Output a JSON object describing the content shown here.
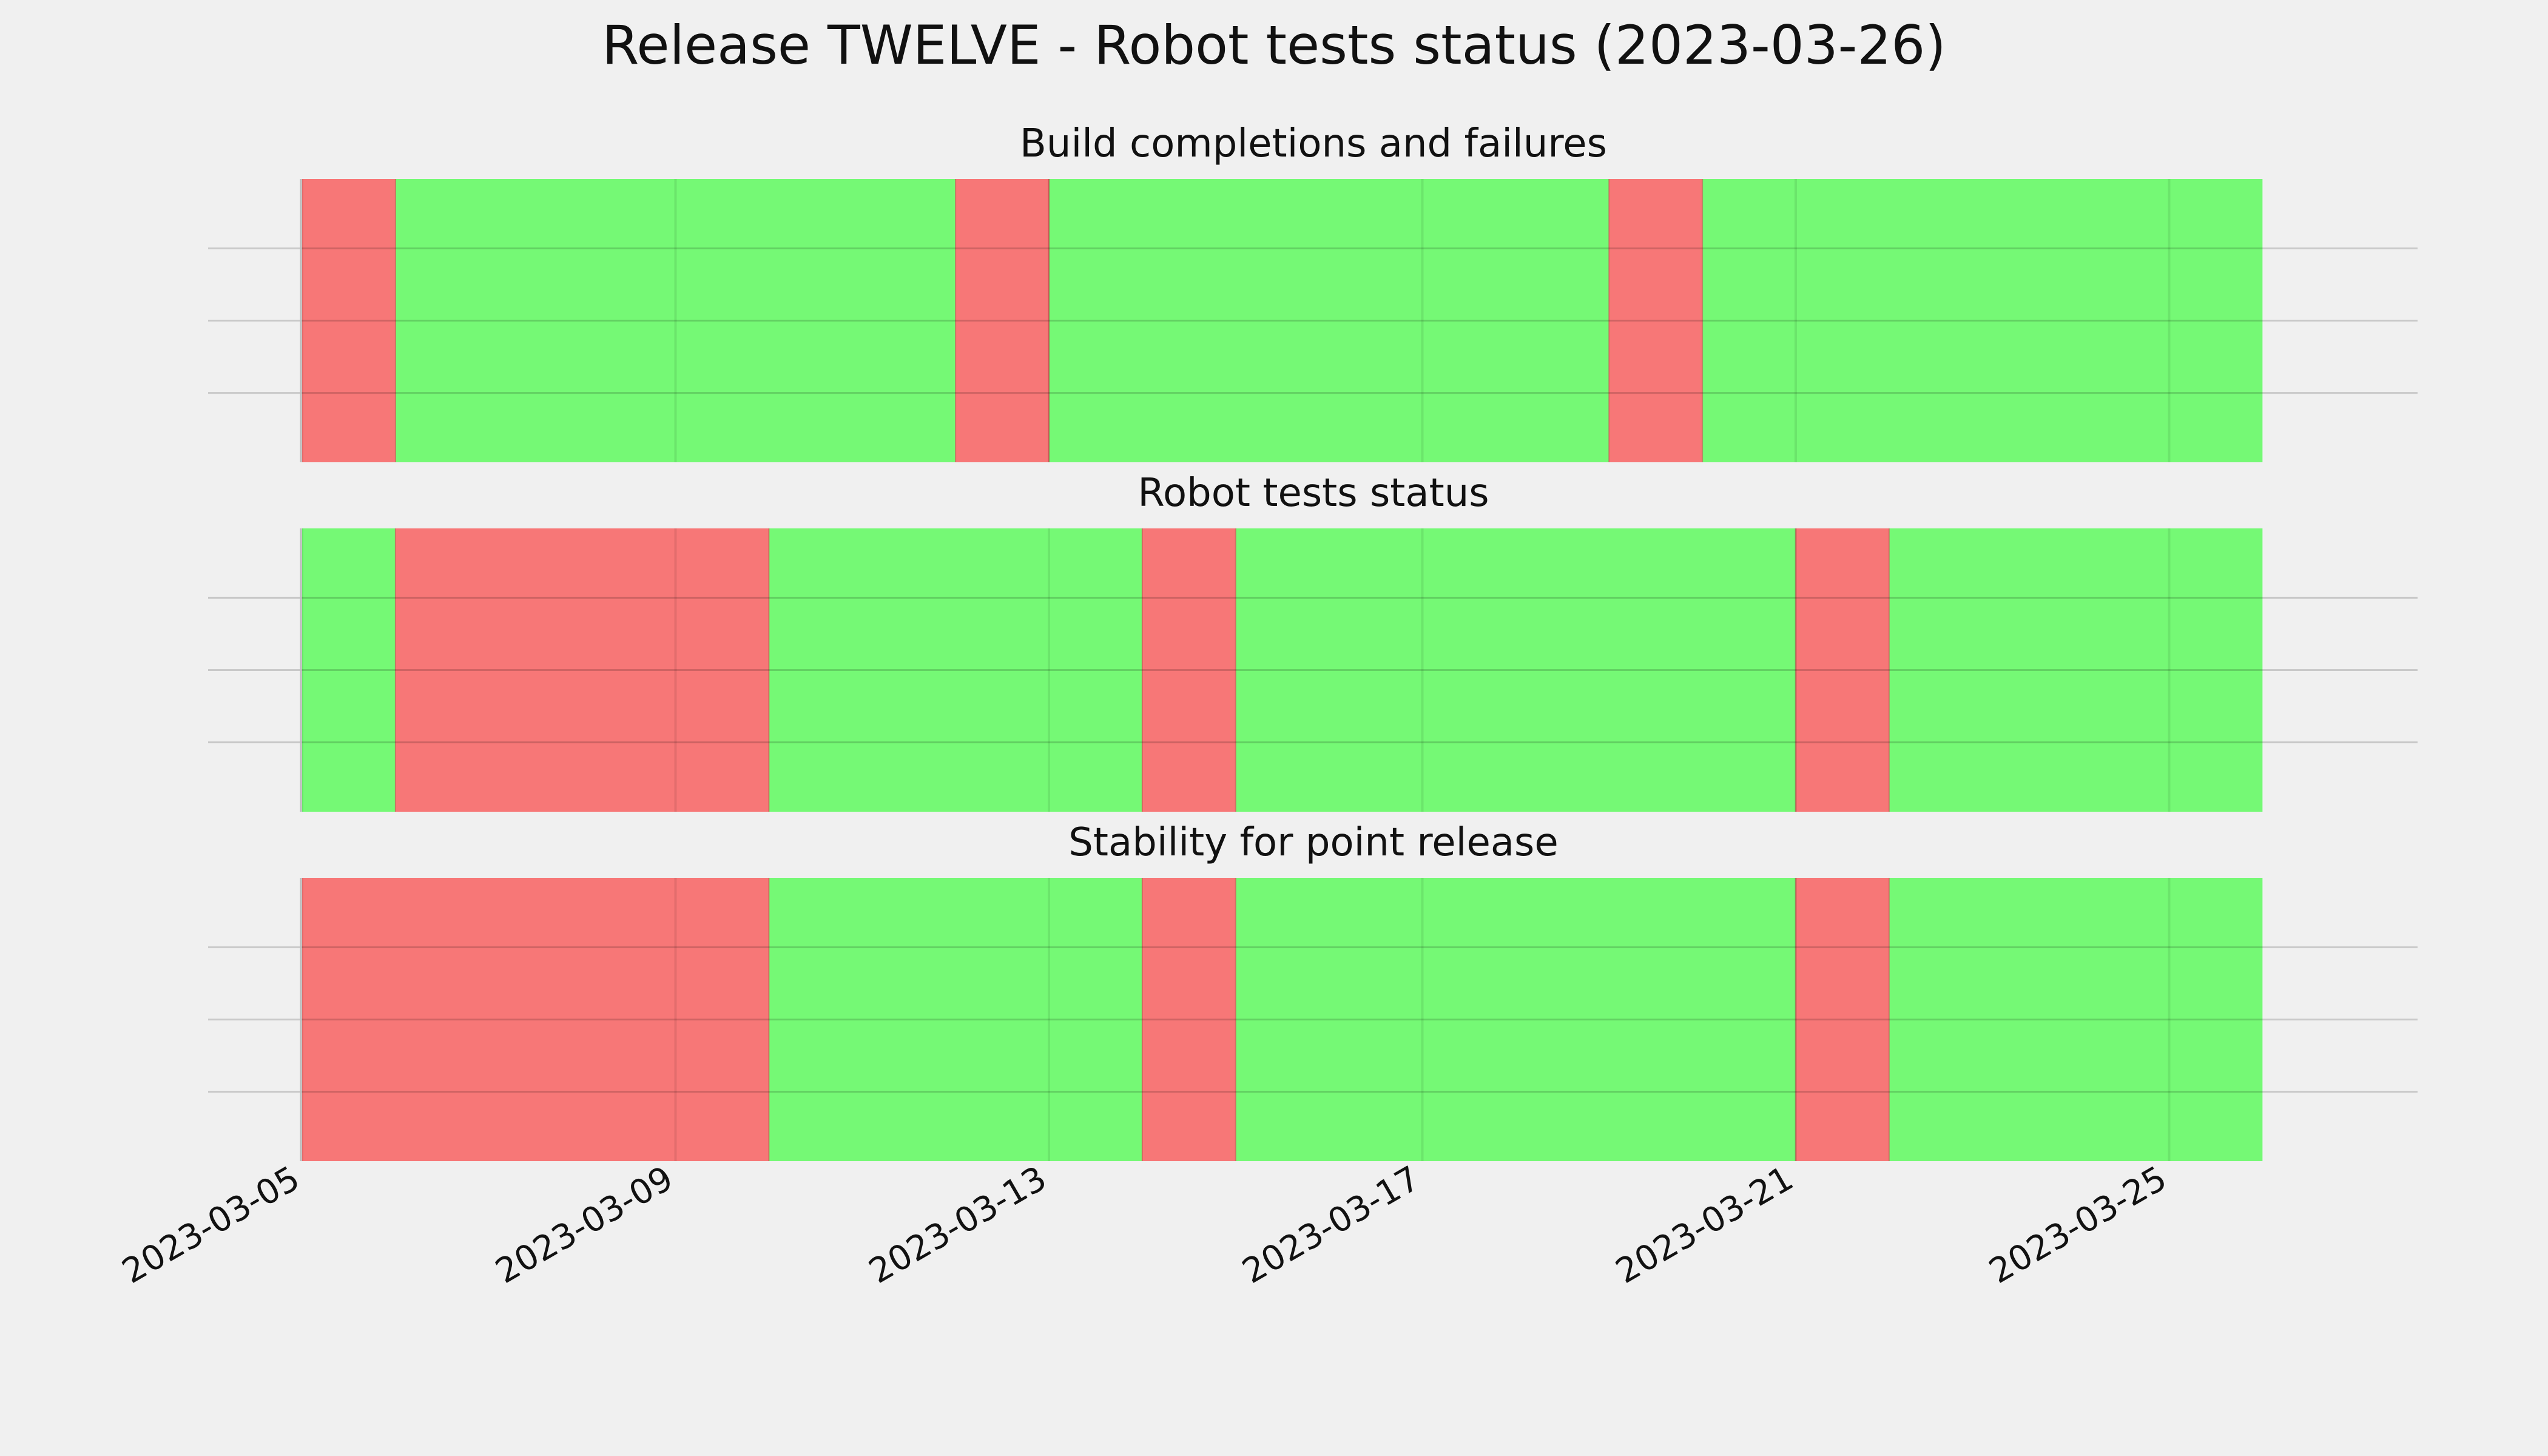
{
  "title": "Release TWELVE - Robot tests status (2023-03-26)",
  "colors": {
    "background": "#f0f0f0",
    "pass": "#75f975",
    "fail": "#f77777",
    "gridline": "#cbcbcb",
    "vgrid": "#6bdc6b"
  },
  "chart_data": {
    "type": "area",
    "xlim": [
      "2023-03-05",
      "2023-03-26"
    ],
    "xticks": [
      "2023-03-05",
      "2023-03-09",
      "2023-03-13",
      "2023-03-17",
      "2023-03-21",
      "2023-03-25"
    ],
    "grid": true,
    "panels": [
      {
        "title": "Build completions and failures",
        "segments": [
          {
            "start": "2023-03-05",
            "end": "2023-03-06",
            "status": "fail"
          },
          {
            "start": "2023-03-06",
            "end": "2023-03-12",
            "status": "pass"
          },
          {
            "start": "2023-03-12",
            "end": "2023-03-13",
            "status": "fail"
          },
          {
            "start": "2023-03-13",
            "end": "2023-03-19",
            "status": "pass"
          },
          {
            "start": "2023-03-19",
            "end": "2023-03-20",
            "status": "fail"
          },
          {
            "start": "2023-03-20",
            "end": "2023-03-26",
            "status": "pass"
          }
        ]
      },
      {
        "title": "Robot tests status",
        "segments": [
          {
            "start": "2023-03-05",
            "end": "2023-03-06",
            "status": "pass"
          },
          {
            "start": "2023-03-06",
            "end": "2023-03-10",
            "status": "fail"
          },
          {
            "start": "2023-03-10",
            "end": "2023-03-14",
            "status": "pass"
          },
          {
            "start": "2023-03-14",
            "end": "2023-03-15",
            "status": "fail"
          },
          {
            "start": "2023-03-15",
            "end": "2023-03-21",
            "status": "pass"
          },
          {
            "start": "2023-03-21",
            "end": "2023-03-22",
            "status": "fail"
          },
          {
            "start": "2023-03-22",
            "end": "2023-03-26",
            "status": "pass"
          }
        ]
      },
      {
        "title": "Stability for point release",
        "segments": [
          {
            "start": "2023-03-05",
            "end": "2023-03-10",
            "status": "fail"
          },
          {
            "start": "2023-03-10",
            "end": "2023-03-14",
            "status": "pass"
          },
          {
            "start": "2023-03-14",
            "end": "2023-03-15",
            "status": "fail"
          },
          {
            "start": "2023-03-15",
            "end": "2023-03-21",
            "status": "pass"
          },
          {
            "start": "2023-03-21",
            "end": "2023-03-22",
            "status": "fail"
          },
          {
            "start": "2023-03-22",
            "end": "2023-03-26",
            "status": "pass"
          }
        ]
      }
    ]
  }
}
